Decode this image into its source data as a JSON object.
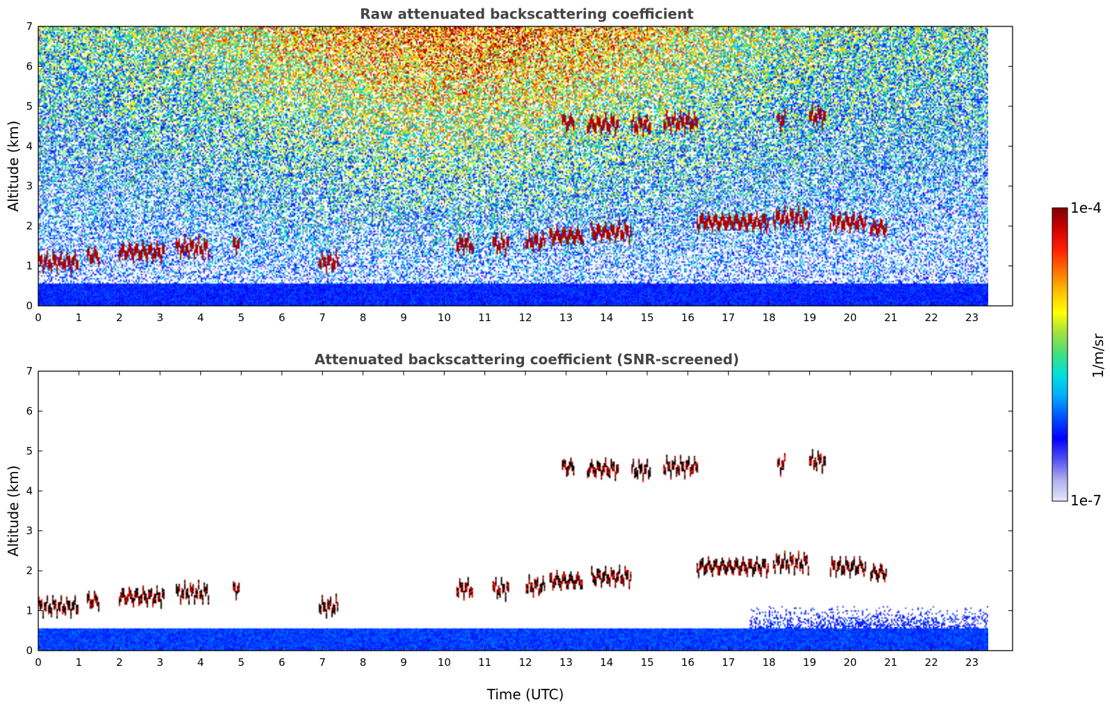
{
  "chart_data": {
    "type": "heatmap",
    "colorbar": {
      "label": "1/m/sr",
      "min_label": "1e-7",
      "max_label": "1e-4",
      "scale": "log",
      "range": [
        1e-07,
        0.0001
      ],
      "colormap": [
        "#e6e6f8",
        "#b0b0ee",
        "#5050f0",
        "#0000ff",
        "#0050ff",
        "#00aaff",
        "#00e0e0",
        "#40e080",
        "#a0e040",
        "#ffff00",
        "#ffc000",
        "#ff7000",
        "#ff2000",
        "#d00000",
        "#800000"
      ]
    },
    "panels": [
      {
        "title": "Raw attenuated backscattering coefficient",
        "ylabel": "Altitude (km)",
        "xlabel": "",
        "xlim": [
          0,
          24
        ],
        "ylim": [
          0,
          7
        ],
        "data_time_end": 23.4,
        "xticks": [
          "0",
          "1",
          "2",
          "3",
          "4",
          "5",
          "6",
          "7",
          "8",
          "9",
          "10",
          "11",
          "12",
          "13",
          "14",
          "15",
          "16",
          "17",
          "18",
          "19",
          "20",
          "21",
          "22",
          "23"
        ],
        "yticks": [
          "0",
          "1",
          "2",
          "3",
          "4",
          "5",
          "6",
          "7"
        ],
        "screened": false
      },
      {
        "title": "Attenuated backscattering coefficient (SNR-screened)",
        "ylabel": "Altitude (km)",
        "xlabel": "Time (UTC)",
        "xlim": [
          0,
          24
        ],
        "ylim": [
          0,
          7
        ],
        "data_time_end": 23.4,
        "xticks": [
          "0",
          "1",
          "2",
          "3",
          "4",
          "5",
          "6",
          "7",
          "8",
          "9",
          "10",
          "11",
          "12",
          "13",
          "14",
          "15",
          "16",
          "17",
          "18",
          "19",
          "20",
          "21",
          "22",
          "23"
        ],
        "yticks": [
          "0",
          "1",
          "2",
          "3",
          "4",
          "5",
          "6",
          "7"
        ],
        "screened": true
      }
    ],
    "cloud_layers": [
      {
        "t0": 0.0,
        "t1": 1.0,
        "alt": 1.1
      },
      {
        "t0": 1.2,
        "t1": 1.5,
        "alt": 1.25
      },
      {
        "t0": 2.0,
        "t1": 3.1,
        "alt": 1.35
      },
      {
        "t0": 3.4,
        "t1": 4.2,
        "alt": 1.45
      },
      {
        "t0": 4.8,
        "t1": 4.95,
        "alt": 1.55
      },
      {
        "t0": 6.9,
        "t1": 7.4,
        "alt": 1.1
      },
      {
        "t0": 10.3,
        "t1": 10.7,
        "alt": 1.55
      },
      {
        "t0": 11.2,
        "t1": 11.6,
        "alt": 1.55
      },
      {
        "t0": 12.0,
        "t1": 12.5,
        "alt": 1.6
      },
      {
        "t0": 12.6,
        "t1": 13.4,
        "alt": 1.75
      },
      {
        "t0": 13.6,
        "t1": 14.6,
        "alt": 1.85
      },
      {
        "t0": 16.2,
        "t1": 18.0,
        "alt": 2.1
      },
      {
        "t0": 18.1,
        "t1": 19.0,
        "alt": 2.2
      },
      {
        "t0": 19.5,
        "t1": 20.4,
        "alt": 2.1
      },
      {
        "t0": 20.5,
        "t1": 20.9,
        "alt": 1.95
      },
      {
        "t0": 12.9,
        "t1": 13.2,
        "alt": 4.6
      },
      {
        "t0": 13.5,
        "t1": 14.3,
        "alt": 4.55
      },
      {
        "t0": 14.6,
        "t1": 15.1,
        "alt": 4.52
      },
      {
        "t0": 15.4,
        "t1": 16.25,
        "alt": 4.6
      },
      {
        "t0": 18.2,
        "t1": 18.4,
        "alt": 4.65
      },
      {
        "t0": 19.0,
        "t1": 19.4,
        "alt": 4.75
      }
    ],
    "boundary_layer_top_km": 0.55
  }
}
